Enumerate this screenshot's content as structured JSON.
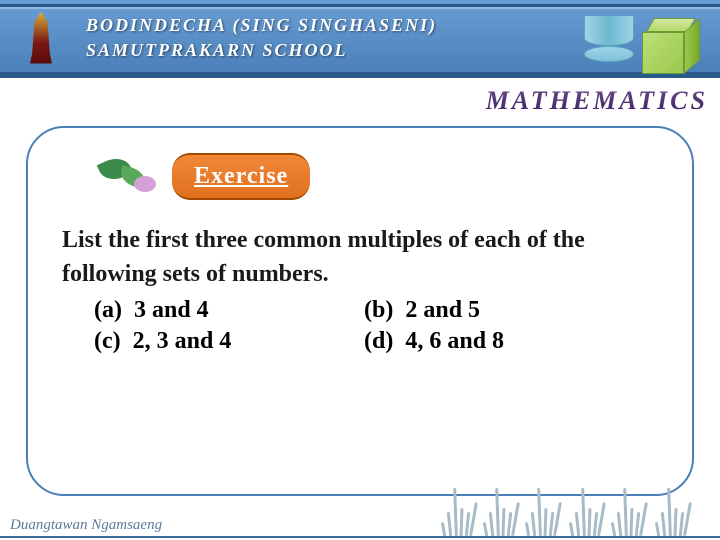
{
  "header": {
    "school_line1": "BODINDECHA (SING SINGHASENI)",
    "school_line2": "SAMUTPRAKARN SCHOOL"
  },
  "banner": "MATHEMATICS",
  "card": {
    "badge_label": "Exercise",
    "question": "List the first three common multiples of each of the following sets of numbers.",
    "options": {
      "a": {
        "label": "(a)",
        "text": "3 and 4"
      },
      "b": {
        "label": "(b)",
        "text": "2 and 5"
      },
      "c": {
        "label": "(c)",
        "text": "2, 3 and 4"
      },
      "d": {
        "label": "(d)",
        "text": "4, 6 and 8"
      }
    }
  },
  "footer": {
    "author": "Duangtawan  Ngamsaeng"
  },
  "colors": {
    "header_top": "#6a9ed4",
    "header_bottom": "#4a7fb8",
    "header_border": "#2a5a8a",
    "card_border": "#4a7fb8",
    "pill_bg": "#e87828",
    "pill_text": "#ffffff",
    "banner_text": "#4a2a70",
    "body_text": "#1a1a1a",
    "footer_text": "#5a7a9a",
    "grass": "#a8bcc8",
    "cylinder": "#7ec3da",
    "cube": "#9ac84a"
  }
}
